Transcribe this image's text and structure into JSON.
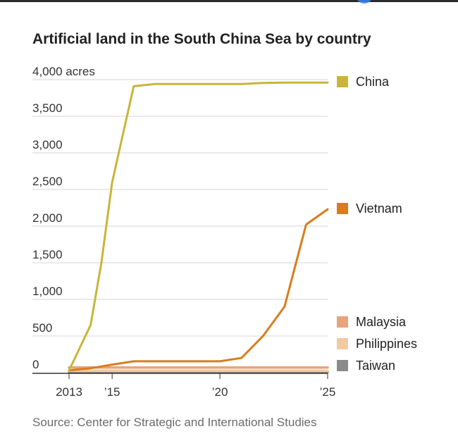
{
  "chart_data": {
    "type": "line",
    "title": "Artificial land in the South China Sea by country",
    "source": "Source: Center for Strategic and International Studies",
    "ylim": [
      0,
      4000
    ],
    "xlim": [
      2013,
      2025
    ],
    "y_ticks": [
      {
        "value": 4000,
        "label": "4,000 acres"
      },
      {
        "value": 3500,
        "label": "3,500"
      },
      {
        "value": 3000,
        "label": "3,000"
      },
      {
        "value": 2500,
        "label": "2,500"
      },
      {
        "value": 2000,
        "label": "2,000"
      },
      {
        "value": 1500,
        "label": "1,500"
      },
      {
        "value": 1000,
        "label": "1,000"
      },
      {
        "value": 500,
        "label": "500"
      },
      {
        "value": 0,
        "label": "0"
      }
    ],
    "x_ticks": [
      {
        "value": 2013,
        "label": "2013"
      },
      {
        "value": 2015,
        "label": "’15"
      },
      {
        "value": 2020,
        "label": "’20"
      },
      {
        "value": 2025,
        "label": "’25"
      }
    ],
    "grid": true,
    "legend_position": "right",
    "series": [
      {
        "name": "China",
        "color": "#c8b53a",
        "x": [
          2013,
          2014,
          2014.5,
          2015,
          2016,
          2017,
          2018,
          2019,
          2020,
          2021,
          2022,
          2023,
          2024,
          2025
        ],
        "y": [
          30,
          650,
          1500,
          2600,
          3910,
          3940,
          3940,
          3940,
          3940,
          3940,
          3955,
          3960,
          3960,
          3960
        ]
      },
      {
        "name": "Vietnam",
        "color": "#d97d1c",
        "x": [
          2013,
          2014,
          2015,
          2016,
          2017,
          2018,
          2019,
          2020,
          2021,
          2022,
          2023,
          2024,
          2025
        ],
        "y": [
          30,
          60,
          110,
          155,
          155,
          155,
          155,
          155,
          200,
          500,
          900,
          2020,
          2230
        ]
      },
      {
        "name": "Malaysia",
        "color": "#e8a47a",
        "x": [
          2013,
          2014,
          2015,
          2016,
          2017,
          2018,
          2019,
          2020,
          2021,
          2022,
          2023,
          2024,
          2025
        ],
        "y": [
          70,
          70,
          70,
          70,
          70,
          70,
          70,
          70,
          70,
          70,
          70,
          70,
          70
        ]
      },
      {
        "name": "Philippines",
        "color": "#f3c9a1",
        "x": [
          2013,
          2014,
          2015,
          2016,
          2017,
          2018,
          2019,
          2020,
          2021,
          2022,
          2023,
          2024,
          2025
        ],
        "y": [
          25,
          25,
          25,
          25,
          25,
          25,
          25,
          25,
          25,
          25,
          25,
          25,
          25
        ]
      },
      {
        "name": "Taiwan",
        "color": "#8a8a8a",
        "x": [
          2013,
          2014,
          2015,
          2016,
          2017,
          2018,
          2019,
          2020,
          2021,
          2022,
          2023,
          2024,
          2025
        ],
        "y": [
          8,
          8,
          8,
          8,
          8,
          8,
          8,
          8,
          8,
          8,
          8,
          8,
          8
        ]
      }
    ]
  }
}
